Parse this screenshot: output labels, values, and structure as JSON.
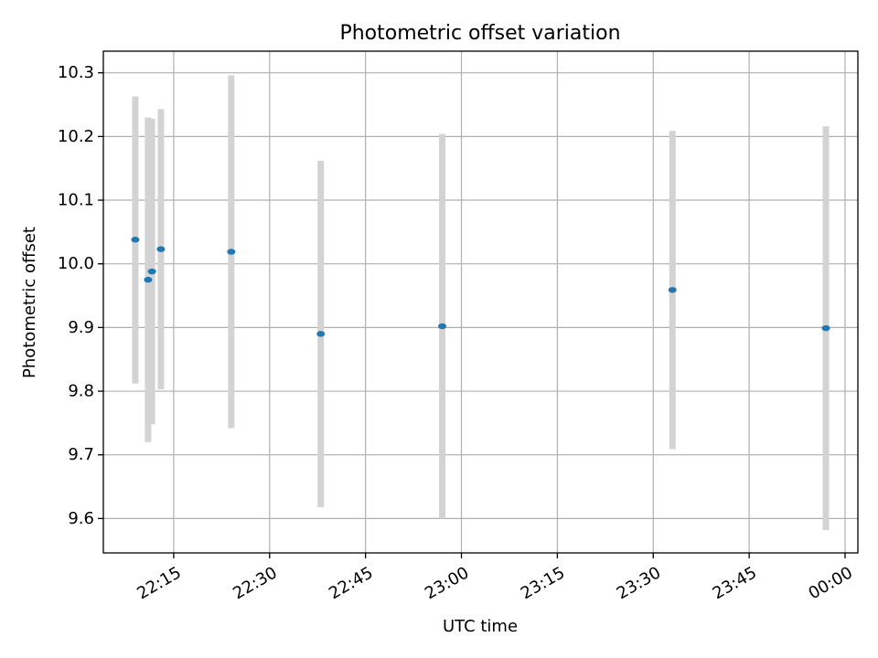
{
  "chart_data": {
    "type": "scatter",
    "title": "Photometric offset variation",
    "xlabel": "UTC time",
    "ylabel": "Photometric offset",
    "grid": true,
    "x_tick_labels": [
      "22:15",
      "22:30",
      "22:45",
      "23:00",
      "23:15",
      "23:30",
      "23:45",
      "00:00"
    ],
    "y_tick_labels": [
      "9.6",
      "9.7",
      "9.8",
      "9.9",
      "10.0",
      "10.1",
      "10.2",
      "10.3"
    ],
    "xlim": [
      "22:04",
      "00:02"
    ],
    "ylim": [
      9.546,
      10.334
    ],
    "series": [
      {
        "color": "#1f77b4",
        "errorbar_color": "#d3d3d3",
        "points": [
          {
            "x": "22:09",
            "y": 10.038,
            "ylow": 9.812,
            "yhigh": 10.263
          },
          {
            "x": "22:11",
            "y": 9.975,
            "ylow": 9.72,
            "yhigh": 10.23
          },
          {
            "x": "22:11",
            "y": 9.988,
            "ylow": 9.748,
            "yhigh": 10.228
          },
          {
            "x": "22:13",
            "y": 10.023,
            "ylow": 9.803,
            "yhigh": 10.243
          },
          {
            "x": "22:24",
            "y": 10.019,
            "ylow": 9.742,
            "yhigh": 10.296
          },
          {
            "x": "22:38",
            "y": 9.89,
            "ylow": 9.618,
            "yhigh": 10.162
          },
          {
            "x": "22:57",
            "y": 9.902,
            "ylow": 9.6,
            "yhigh": 10.204
          },
          {
            "x": "23:33",
            "y": 9.959,
            "ylow": 9.709,
            "yhigh": 10.209
          },
          {
            "x": "23:57",
            "y": 9.899,
            "ylow": 9.582,
            "yhigh": 10.216
          }
        ]
      }
    ]
  }
}
